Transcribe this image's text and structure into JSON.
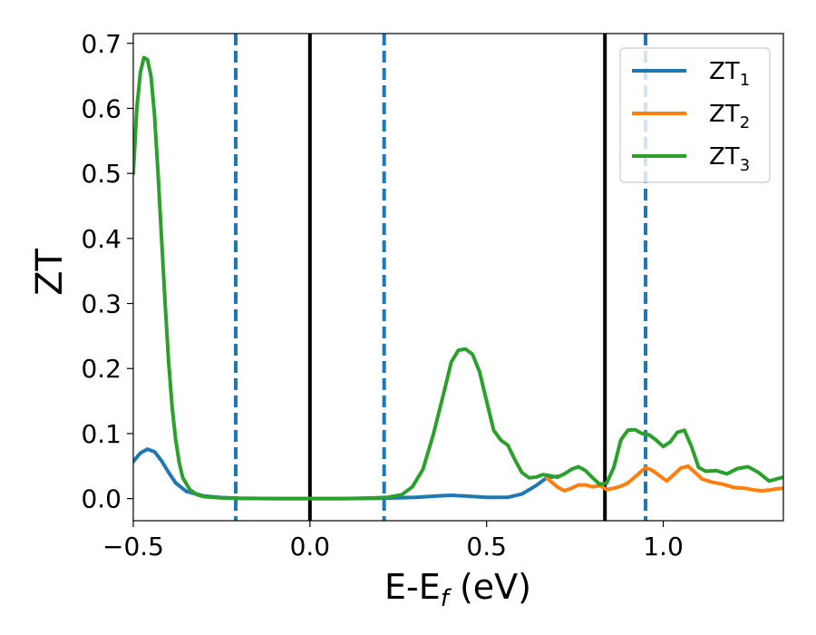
{
  "chart_data": {
    "type": "line",
    "xlabel": {
      "main": "E-E",
      "sub": "f",
      "suffix": " (eV)"
    },
    "ylabel": "ZT",
    "xlim": [
      -0.5,
      1.34
    ],
    "ylim": [
      -0.034,
      0.715
    ],
    "xticks": [
      {
        "value": -0.5,
        "label": "−0.5"
      },
      {
        "value": 0.0,
        "label": "0.0"
      },
      {
        "value": 0.5,
        "label": "0.5"
      },
      {
        "value": 1.0,
        "label": "1.0"
      }
    ],
    "yticks": [
      {
        "value": 0.0,
        "label": "0.0"
      },
      {
        "value": 0.1,
        "label": "0.1"
      },
      {
        "value": 0.2,
        "label": "0.2"
      },
      {
        "value": 0.3,
        "label": "0.3"
      },
      {
        "value": 0.4,
        "label": "0.4"
      },
      {
        "value": 0.5,
        "label": "0.5"
      },
      {
        "value": 0.6,
        "label": "0.6"
      },
      {
        "value": 0.7,
        "label": "0.7"
      }
    ],
    "grid": false,
    "legend_position": "top-right",
    "vertical_lines": [
      {
        "x": -0.21,
        "style": "dashed",
        "color": "#1f77b4"
      },
      {
        "x": 0.0,
        "style": "solid",
        "color": "#000000"
      },
      {
        "x": 0.21,
        "style": "dashed",
        "color": "#1f77b4"
      },
      {
        "x": 0.835,
        "style": "solid",
        "color": "#000000"
      },
      {
        "x": 0.95,
        "style": "dashed",
        "color": "#1f77b4"
      }
    ],
    "series": [
      {
        "name": "ZT",
        "sub": "1",
        "color": "#1f77b4",
        "points": [
          [
            -0.5,
            0.057
          ],
          [
            -0.48,
            0.07
          ],
          [
            -0.46,
            0.076
          ],
          [
            -0.44,
            0.072
          ],
          [
            -0.42,
            0.058
          ],
          [
            -0.4,
            0.04
          ],
          [
            -0.38,
            0.024
          ],
          [
            -0.35,
            0.011
          ],
          [
            -0.3,
            0.004
          ],
          [
            -0.25,
            0.0015
          ],
          [
            -0.2,
            0.0005
          ],
          [
            -0.1,
            0.0
          ],
          [
            0.0,
            0.0
          ],
          [
            0.1,
            0.0
          ],
          [
            0.2,
            0.0005
          ],
          [
            0.3,
            0.002
          ],
          [
            0.36,
            0.004
          ],
          [
            0.4,
            0.005
          ],
          [
            0.44,
            0.004
          ],
          [
            0.5,
            0.002
          ],
          [
            0.56,
            0.002
          ],
          [
            0.6,
            0.007
          ],
          [
            0.64,
            0.02
          ],
          [
            0.67,
            0.032
          ],
          [
            0.7,
            0.034
          ]
        ]
      },
      {
        "name": "ZT",
        "sub": "2",
        "color": "#ff7f0e",
        "points": [
          [
            0.67,
            0.032
          ],
          [
            0.7,
            0.018
          ],
          [
            0.72,
            0.012
          ],
          [
            0.74,
            0.016
          ],
          [
            0.76,
            0.021
          ],
          [
            0.78,
            0.021
          ],
          [
            0.8,
            0.018
          ],
          [
            0.82,
            0.02
          ],
          [
            0.84,
            0.014
          ],
          [
            0.86,
            0.016
          ],
          [
            0.88,
            0.019
          ],
          [
            0.9,
            0.024
          ],
          [
            0.93,
            0.038
          ],
          [
            0.95,
            0.048
          ],
          [
            0.97,
            0.043
          ],
          [
            0.99,
            0.035
          ],
          [
            1.01,
            0.027
          ],
          [
            1.03,
            0.037
          ],
          [
            1.05,
            0.047
          ],
          [
            1.07,
            0.05
          ],
          [
            1.09,
            0.04
          ],
          [
            1.11,
            0.03
          ],
          [
            1.14,
            0.025
          ],
          [
            1.17,
            0.022
          ],
          [
            1.2,
            0.017
          ],
          [
            1.23,
            0.016
          ],
          [
            1.26,
            0.013
          ],
          [
            1.28,
            0.012
          ],
          [
            1.3,
            0.013
          ],
          [
            1.32,
            0.015
          ],
          [
            1.34,
            0.016
          ]
        ]
      },
      {
        "name": "ZT",
        "sub": "3",
        "color": "#2ca02c",
        "points": [
          [
            -0.5,
            0.5
          ],
          [
            -0.49,
            0.6
          ],
          [
            -0.48,
            0.655
          ],
          [
            -0.47,
            0.678
          ],
          [
            -0.46,
            0.675
          ],
          [
            -0.45,
            0.65
          ],
          [
            -0.44,
            0.59
          ],
          [
            -0.43,
            0.5
          ],
          [
            -0.42,
            0.4
          ],
          [
            -0.41,
            0.3
          ],
          [
            -0.4,
            0.21
          ],
          [
            -0.39,
            0.14
          ],
          [
            -0.38,
            0.09
          ],
          [
            -0.37,
            0.055
          ],
          [
            -0.36,
            0.032
          ],
          [
            -0.34,
            0.014
          ],
          [
            -0.32,
            0.006
          ],
          [
            -0.3,
            0.003
          ],
          [
            -0.25,
            0.001
          ],
          [
            -0.2,
            0.0003
          ],
          [
            -0.1,
            0.0
          ],
          [
            0.0,
            0.0
          ],
          [
            0.1,
            0.0
          ],
          [
            0.18,
            0.001
          ],
          [
            0.22,
            0.002
          ],
          [
            0.26,
            0.006
          ],
          [
            0.29,
            0.018
          ],
          [
            0.32,
            0.045
          ],
          [
            0.35,
            0.1
          ],
          [
            0.38,
            0.165
          ],
          [
            0.4,
            0.21
          ],
          [
            0.42,
            0.228
          ],
          [
            0.44,
            0.23
          ],
          [
            0.46,
            0.222
          ],
          [
            0.48,
            0.195
          ],
          [
            0.5,
            0.15
          ],
          [
            0.52,
            0.105
          ],
          [
            0.54,
            0.09
          ],
          [
            0.56,
            0.082
          ],
          [
            0.58,
            0.06
          ],
          [
            0.6,
            0.04
          ],
          [
            0.62,
            0.032
          ],
          [
            0.64,
            0.033
          ],
          [
            0.66,
            0.037
          ],
          [
            0.68,
            0.035
          ],
          [
            0.7,
            0.033
          ],
          [
            0.72,
            0.038
          ],
          [
            0.74,
            0.045
          ],
          [
            0.76,
            0.049
          ],
          [
            0.78,
            0.043
          ],
          [
            0.8,
            0.032
          ],
          [
            0.82,
            0.022
          ],
          [
            0.84,
            0.024
          ],
          [
            0.86,
            0.048
          ],
          [
            0.88,
            0.09
          ],
          [
            0.9,
            0.105
          ],
          [
            0.92,
            0.106
          ],
          [
            0.94,
            0.1
          ],
          [
            0.96,
            0.098
          ],
          [
            0.98,
            0.09
          ],
          [
            1.0,
            0.08
          ],
          [
            1.02,
            0.087
          ],
          [
            1.04,
            0.102
          ],
          [
            1.06,
            0.105
          ],
          [
            1.08,
            0.08
          ],
          [
            1.1,
            0.048
          ],
          [
            1.12,
            0.042
          ],
          [
            1.15,
            0.043
          ],
          [
            1.18,
            0.038
          ],
          [
            1.21,
            0.046
          ],
          [
            1.24,
            0.049
          ],
          [
            1.27,
            0.04
          ],
          [
            1.3,
            0.027
          ],
          [
            1.32,
            0.03
          ],
          [
            1.34,
            0.033
          ]
        ]
      }
    ]
  }
}
